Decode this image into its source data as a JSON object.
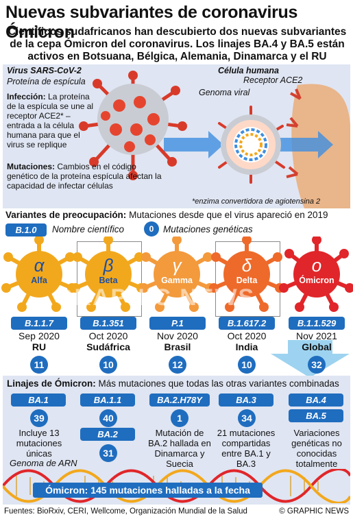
{
  "title": "Nuevas subvariantes de coronavirus Ómicron",
  "subtitle": "Científicos sudafricanos han descubierto dos nuevas subvariantes de la cepa Ómicron del coronavirus. Los linajes BA.4 y BA.5 están activos en Botsuana, Bélgica, Alemania, Dinamarca y el RU",
  "virus": {
    "heading": "Virus SARS-CoV-2",
    "spike_label": "Proteína de espícula",
    "infection_title": "Infección:",
    "infection_text": "La proteína de la espícula se une al receptor ACE2* – entrada a la célula humana para que el virus se replique",
    "mutation_title": "Mutaciones:",
    "mutation_text": "Cambios en el código genético de la proteína espícula afectan la capacidad de infectar células"
  },
  "cell": {
    "heading": "Célula humana",
    "receptor_label": "Receptor ACE2",
    "genome_label": "Genoma viral",
    "footnote": "*enzima convertidora de agiotensina 2"
  },
  "concern": {
    "heading": "Variantes de preocupación:",
    "heading_rest": "Mutaciones desde que el virus apareció en 2019",
    "legend_code": "B.1.0",
    "legend_code_label": "Nombre científico",
    "legend_num": "0",
    "legend_num_label": "Mutaciones genéticas"
  },
  "variants": [
    {
      "greek": "α",
      "name": "Alfa",
      "code": "B.1.1.7",
      "date": "Sep 2020",
      "place": "RU",
      "mutations": "11",
      "color": "#f2a81d"
    },
    {
      "greek": "β",
      "name": "Beta",
      "code": "B.1.351",
      "date": "Oct 2020",
      "place": "Sudáfrica",
      "mutations": "10",
      "color": "#f2a81d"
    },
    {
      "greek": "γ",
      "name": "Gamma",
      "code": "P.1",
      "date": "Nov 2020",
      "place": "Brasil",
      "mutations": "12",
      "color": "#f39a3c"
    },
    {
      "greek": "δ",
      "name": "Delta",
      "code": "B.1.617.2",
      "date": "Oct 2020",
      "place": "India",
      "mutations": "10",
      "color": "#ee6a2a"
    },
    {
      "greek": "ο",
      "name": "Ómicron",
      "code": "B.1.1.529",
      "date": "Nov 2021",
      "place": "Global",
      "mutations": "32",
      "color": "#e0262a"
    }
  ],
  "lineages": {
    "heading": "Linajes de Ómicron:",
    "heading_rest": "Más mutaciones que todas las otras variantes combinadas",
    "items": [
      {
        "code": "BA.1",
        "mutations": "39",
        "desc": "Incluye 13 mutaciones únicas"
      },
      {
        "code": "BA.1.1",
        "mutations": "40",
        "code2": "BA.2",
        "mutations2": "31"
      },
      {
        "code": "BA.2.H78Y",
        "mutations": "1",
        "desc": "Mutación de BA.2 hallada en Dinamarca y Suecia"
      },
      {
        "code": "BA.3",
        "mutations": "34",
        "desc": "21 mutaciones compartidas entre BA.1 y BA.3"
      },
      {
        "code": "BA.4",
        "code2": "BA.5",
        "desc": "Variaciones genéticas no conocidas totalmente"
      }
    ],
    "rna_label": "Genoma de ARN",
    "banner": "Ómicron: 145 mutaciones halladas a la fecha"
  },
  "footer": {
    "sources": "Fuentes: BioRxiv, CERI, Wellcome, Organización Mundial de la Salud",
    "credit": "© GRAPHIC NEWS"
  },
  "watermark": "GRAPHIC NEWS",
  "colors": {
    "blue": "#1f6dbf",
    "panel": "#dfe5f2",
    "red": "#e0262a",
    "orange": "#f2a81d"
  }
}
